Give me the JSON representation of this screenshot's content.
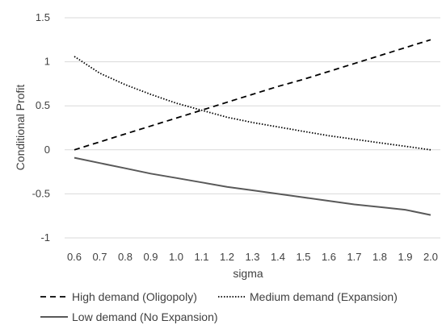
{
  "chart_data": {
    "type": "line",
    "title": "",
    "xlabel": "sigma",
    "ylabel": "Conditional Profit",
    "x": [
      "0.6",
      "0.7",
      "0.8",
      "0.9",
      "1.0",
      "1.1",
      "1.2",
      "1.3",
      "1.4",
      "1.5",
      "1.6",
      "1.7",
      "1.8",
      "1.9",
      "2.0"
    ],
    "ylim": [
      -1,
      1.5
    ],
    "y_ticks": [
      "-1",
      "-0.5",
      "0",
      "0.5",
      "1",
      "1.5"
    ],
    "grid": "horizontal",
    "legend_position": "bottom",
    "series": [
      {
        "name": "High demand (Oligopoly)",
        "style": "dashed",
        "color": "#000000",
        "values": [
          0.0,
          0.09,
          0.18,
          0.27,
          0.36,
          0.45,
          0.54,
          0.63,
          0.72,
          0.8,
          0.89,
          0.98,
          1.07,
          1.16,
          1.25
        ]
      },
      {
        "name": "Medium demand (Expansion)",
        "style": "dotted",
        "color": "#000000",
        "values": [
          1.06,
          0.87,
          0.74,
          0.63,
          0.53,
          0.45,
          0.37,
          0.31,
          0.26,
          0.21,
          0.16,
          0.12,
          0.08,
          0.04,
          0.0
        ]
      },
      {
        "name": "Low demand (No Expansion)",
        "style": "solid",
        "color": "#595959",
        "values": [
          -0.09,
          -0.15,
          -0.21,
          -0.27,
          -0.32,
          -0.37,
          -0.42,
          -0.46,
          -0.5,
          -0.54,
          -0.58,
          -0.62,
          -0.65,
          -0.68,
          -0.74
        ]
      }
    ]
  }
}
